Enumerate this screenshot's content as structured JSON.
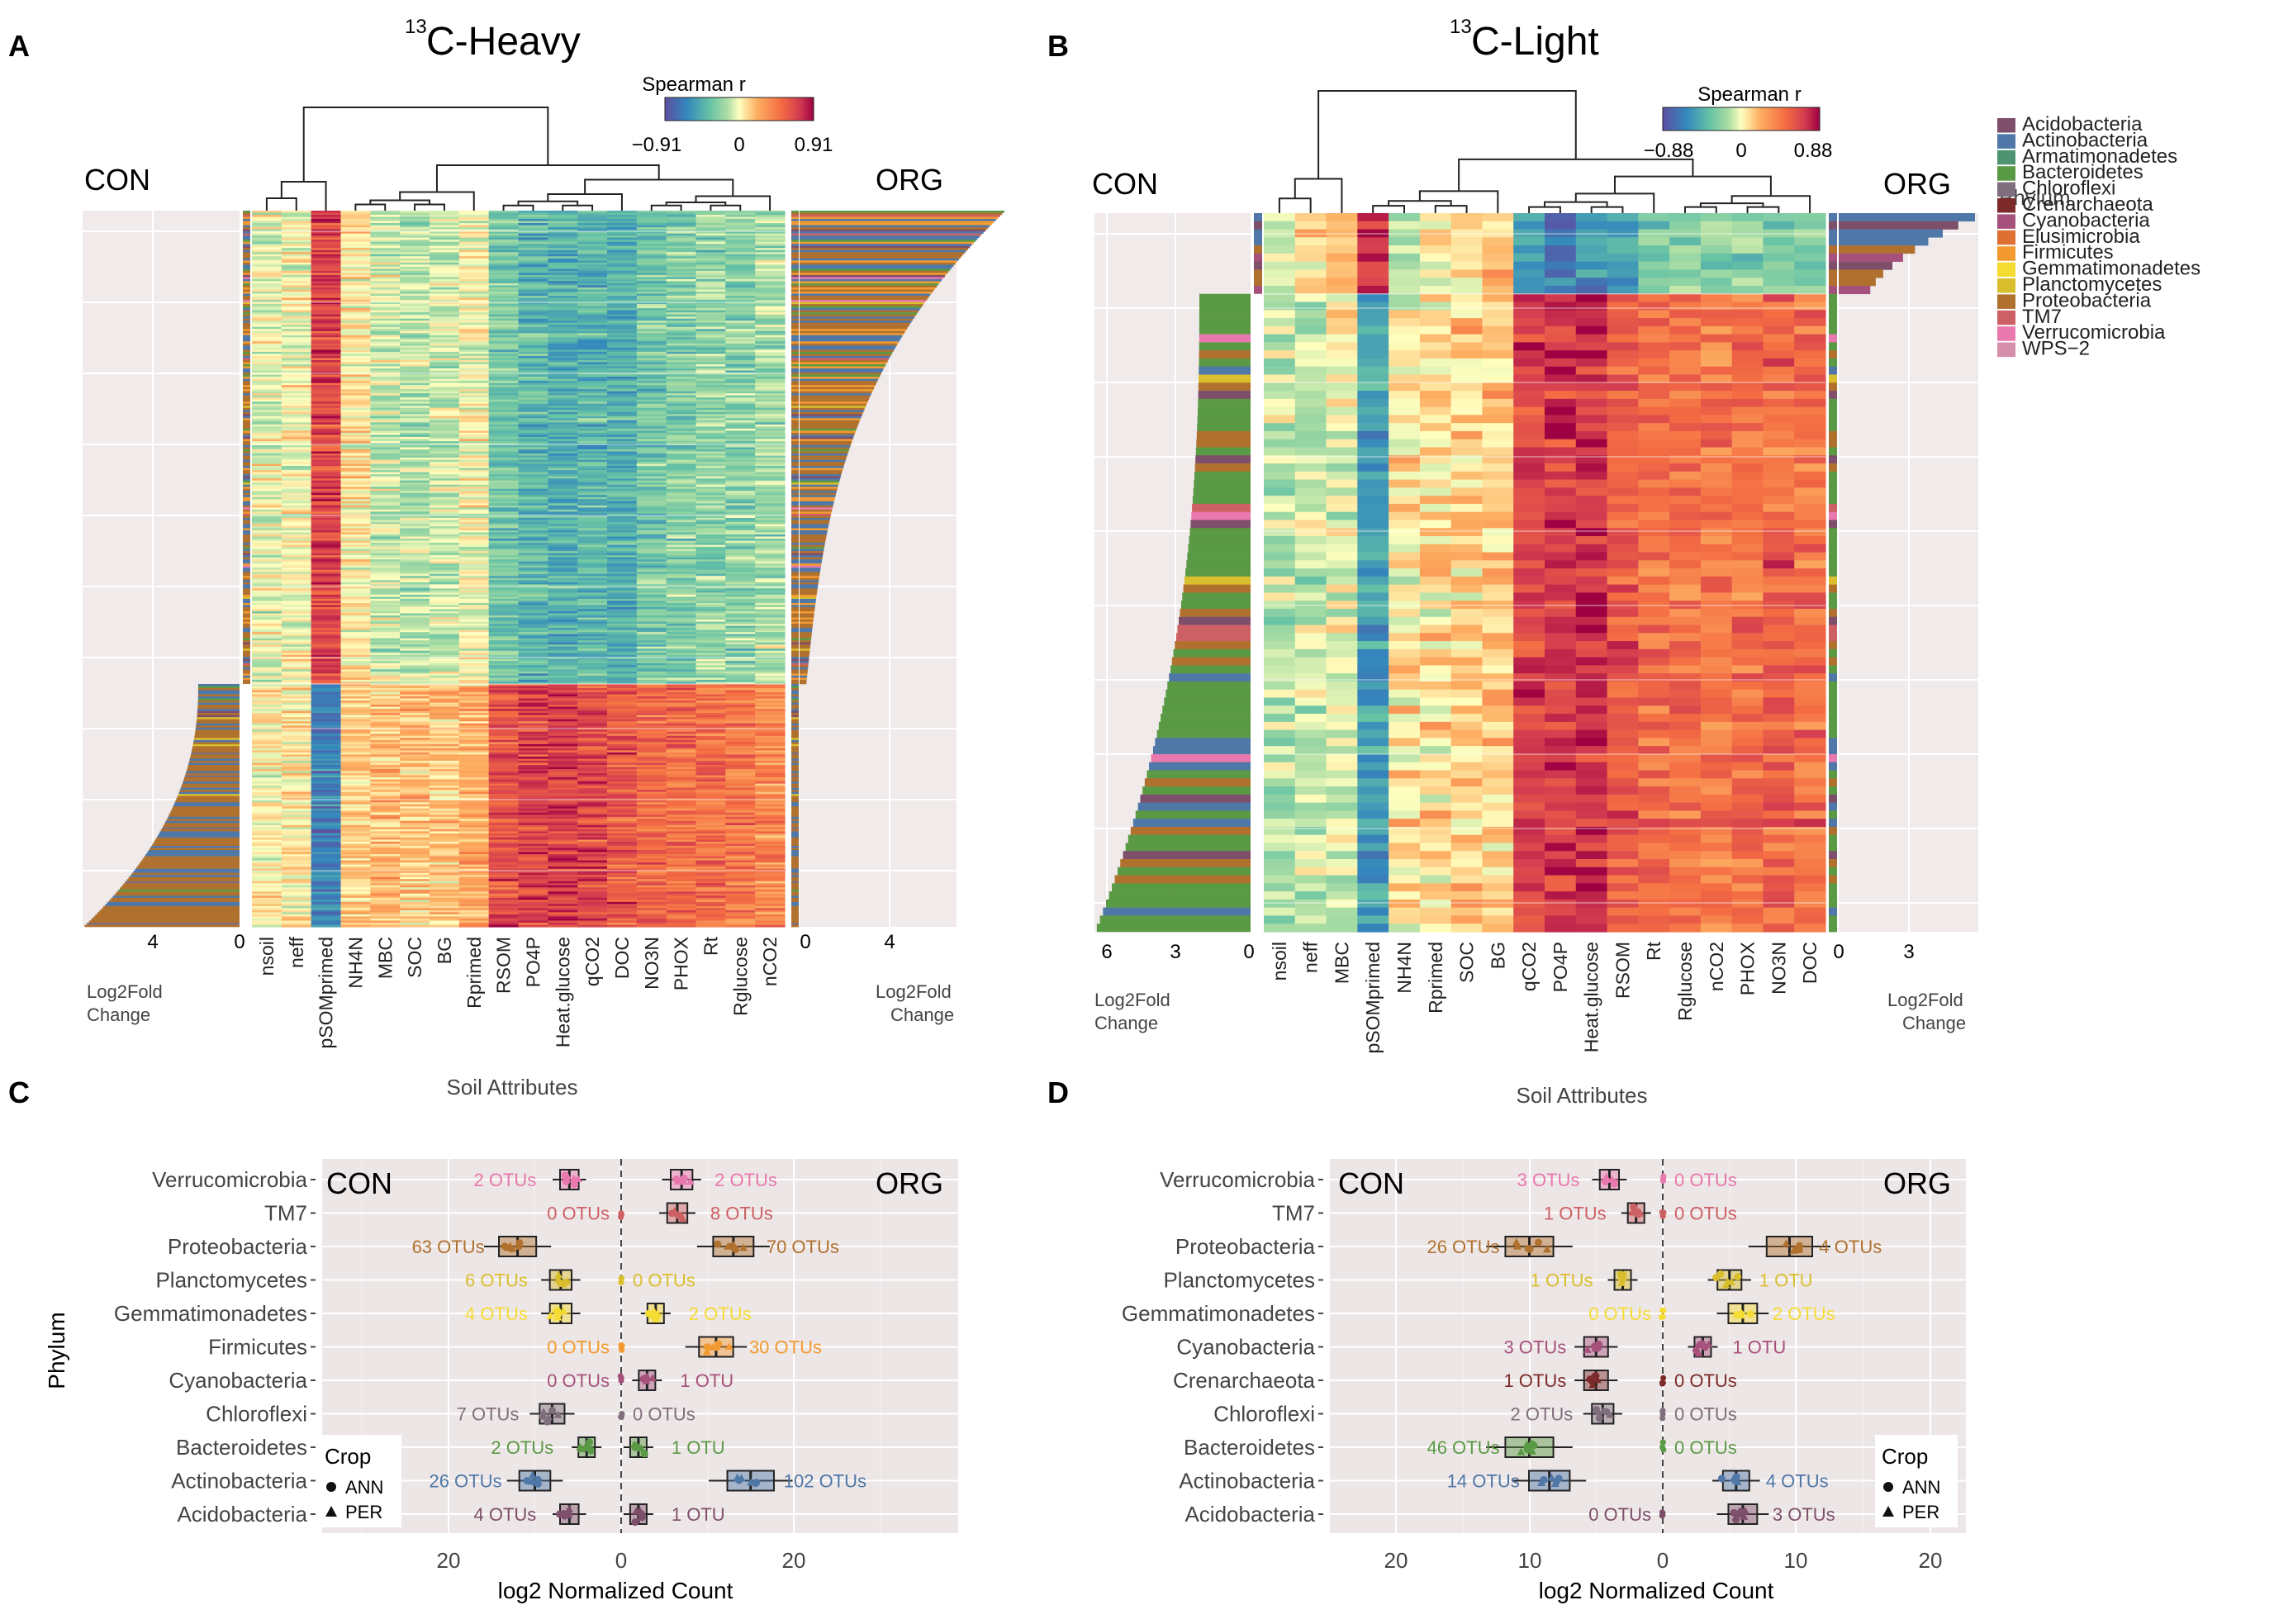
{
  "phyla": [
    {
      "name": "Acidobacteria",
      "color": "#7e4f6b"
    },
    {
      "name": "Actinobacteria",
      "color": "#4f78a8"
    },
    {
      "name": "Armatimonadetes",
      "color": "#4f9472"
    },
    {
      "name": "Bacteroidetes",
      "color": "#5b9a45"
    },
    {
      "name": "Chloroflexi",
      "color": "#7f6e7c"
    },
    {
      "name": "Crenarchaeota",
      "color": "#7d2a2a"
    },
    {
      "name": "Cyanobacteria",
      "color": "#a6517c"
    },
    {
      "name": "Elusimicrobia",
      "color": "#de7033"
    },
    {
      "name": "Firmicutes",
      "color": "#f29a30"
    },
    {
      "name": "Gemmatimonadetes",
      "color": "#f5dc32"
    },
    {
      "name": "Planctomycetes",
      "color": "#d9be2e"
    },
    {
      "name": "Proteobacteria",
      "color": "#b0712f"
    },
    {
      "name": "TM7",
      "color": "#cd6064"
    },
    {
      "name": "Verrucomicrobia",
      "color": "#e878ad"
    },
    {
      "name": "WPS−2",
      "color": "#d58fab"
    }
  ],
  "legend": {
    "title": "Phylum"
  },
  "chart_data": [
    {
      "panel": "A",
      "type": "heatmap",
      "title_sup": "13",
      "title": "C-Heavy",
      "left_label": "CON",
      "right_label": "ORG",
      "colorbar": {
        "title": "Spearman r",
        "ticks": [
          "−0.91",
          "0",
          "0.91"
        ],
        "range": [
          -0.91,
          0.91
        ]
      },
      "columns": [
        "nsoil",
        "neff",
        "pSOMprimed",
        "NH4N",
        "MBC",
        "SOC",
        "BG",
        "Rprimed",
        "RSOM",
        "PO4P",
        "Heat.glucose",
        "qCO2",
        "DOC",
        "NO3N",
        "PHOX",
        "Rt",
        "Rglucose",
        "nCO2"
      ],
      "left_axis": {
        "ticks": [
          "4",
          "0"
        ],
        "label": "Log2Fold\nChange"
      },
      "right_axis": {
        "ticks": [
          "0",
          "4"
        ],
        "label": "Log2Fold\nChange"
      },
      "xlabel": "Soil Attributes",
      "n_org_otus": 228,
      "n_con_otus": 117
    },
    {
      "panel": "B",
      "type": "heatmap",
      "title_sup": "13",
      "title": "C-Light",
      "left_label": "CON",
      "right_label": "ORG",
      "colorbar": {
        "title": "Spearman r",
        "ticks": [
          "−0.88",
          "0",
          "0.88"
        ],
        "range": [
          -0.88,
          0.88
        ]
      },
      "columns": [
        "nsoil",
        "neff",
        "MBC",
        "pSOMprimed",
        "NH4N",
        "Rprimed",
        "SOC",
        "BG",
        "qCO2",
        "PO4P",
        "Heat.glucose",
        "RSOM",
        "Rt",
        "Rglucose",
        "nCO2",
        "PHOX",
        "NO3N",
        "DOC"
      ],
      "left_axis": {
        "ticks": [
          "6",
          "3",
          "0"
        ],
        "label": "Log2Fold\nChange"
      },
      "right_axis": {
        "ticks": [
          "0",
          "3"
        ],
        "label": "Log2Fold\nChange"
      },
      "xlabel": "Soil Attributes",
      "n_org_otus": 10,
      "n_con_otus": 79
    },
    {
      "panel": "C",
      "type": "boxplot",
      "left_label": "CON",
      "right_label": "ORG",
      "ylabel": "Phylum",
      "xlabel": "log2 Normalized Count",
      "x_ticks": [
        "20",
        "0",
        "20"
      ],
      "legend_title": "Crop",
      "legend_items": [
        "ANN",
        "PER"
      ],
      "rows": [
        {
          "phylum": "Verrucomicrobia",
          "con_label": "2 OTUs",
          "org_label": "2 OTUs",
          "con": -6,
          "org": 7
        },
        {
          "phylum": "TM7",
          "con_label": "0 OTUs",
          "org_label": "8 OTUs",
          "con": 0,
          "org": 6.5
        },
        {
          "phylum": "Proteobacteria",
          "con_label": "63 OTUs",
          "org_label": "70 OTUs",
          "con": -12,
          "org": 13
        },
        {
          "phylum": "Planctomycetes",
          "con_label": "6 OTUs",
          "org_label": "0 OTUs",
          "con": -7,
          "org": 0
        },
        {
          "phylum": "Gemmatimonadetes",
          "con_label": "4 OTUs",
          "org_label": "2 OTUs",
          "con": -7,
          "org": 4
        },
        {
          "phylum": "Firmicutes",
          "con_label": "0 OTUs",
          "org_label": "30 OTUs",
          "con": 0,
          "org": 11
        },
        {
          "phylum": "Cyanobacteria",
          "con_label": "0 OTUs",
          "org_label": "1 OTU",
          "con": 0,
          "org": 3
        },
        {
          "phylum": "Chloroflexi",
          "con_label": "7 OTUs",
          "org_label": "0 OTUs",
          "con": -8,
          "org": 0
        },
        {
          "phylum": "Bacteroidetes",
          "con_label": "2 OTUs",
          "org_label": "1 OTU",
          "con": -4,
          "org": 2
        },
        {
          "phylum": "Actinobacteria",
          "con_label": "26 OTUs",
          "org_label": "102 OTUs",
          "con": -10,
          "org": 15
        },
        {
          "phylum": "Acidobacteria",
          "con_label": "4 OTUs",
          "org_label": "1 OTU",
          "con": -6,
          "org": 2
        }
      ]
    },
    {
      "panel": "D",
      "type": "boxplot",
      "left_label": "CON",
      "right_label": "ORG",
      "ylabel": "",
      "xlabel": "log2 Normalized Count",
      "x_ticks": [
        "20",
        "10",
        "0",
        "10",
        "20"
      ],
      "legend_title": "Crop",
      "legend_items": [
        "ANN",
        "PER"
      ],
      "rows": [
        {
          "phylum": "Verrucomicrobia",
          "con_label": "3 OTUs",
          "org_label": "0 OTUs",
          "con": -4,
          "org": 0
        },
        {
          "phylum": "TM7",
          "con_label": "1 OTUs",
          "org_label": "0 OTUs",
          "con": -2,
          "org": 0
        },
        {
          "phylum": "Proteobacteria",
          "con_label": "26 OTUs",
          "org_label": "4 OTUs",
          "con": -10,
          "org": 9.5
        },
        {
          "phylum": "Planctomycetes",
          "con_label": "1 OTUs",
          "org_label": "1 OTU",
          "con": -3,
          "org": 5
        },
        {
          "phylum": "Gemmatimonadetes",
          "con_label": "0 OTUs",
          "org_label": "2 OTUs",
          "con": 0,
          "org": 6
        },
        {
          "phylum": "Cyanobacteria",
          "con_label": "3 OTUs",
          "org_label": "1 OTU",
          "con": -5,
          "org": 3
        },
        {
          "phylum": "Crenarchaeota",
          "con_label": "1 OTUs",
          "org_label": "0 OTUs",
          "con": -5,
          "org": 0
        },
        {
          "phylum": "Chloroflexi",
          "con_label": "2 OTUs",
          "org_label": "0 OTUs",
          "con": -4.5,
          "org": 0
        },
        {
          "phylum": "Bacteroidetes",
          "con_label": "46 OTUs",
          "org_label": "0 OTUs",
          "con": -10,
          "org": 0
        },
        {
          "phylum": "Actinobacteria",
          "con_label": "14 OTUs",
          "org_label": "4 OTUs",
          "con": -8.5,
          "org": 5.5
        },
        {
          "phylum": "Acidobacteria",
          "con_label": "0 OTUs",
          "org_label": "3 OTUs",
          "con": 0,
          "org": 6
        }
      ]
    }
  ]
}
